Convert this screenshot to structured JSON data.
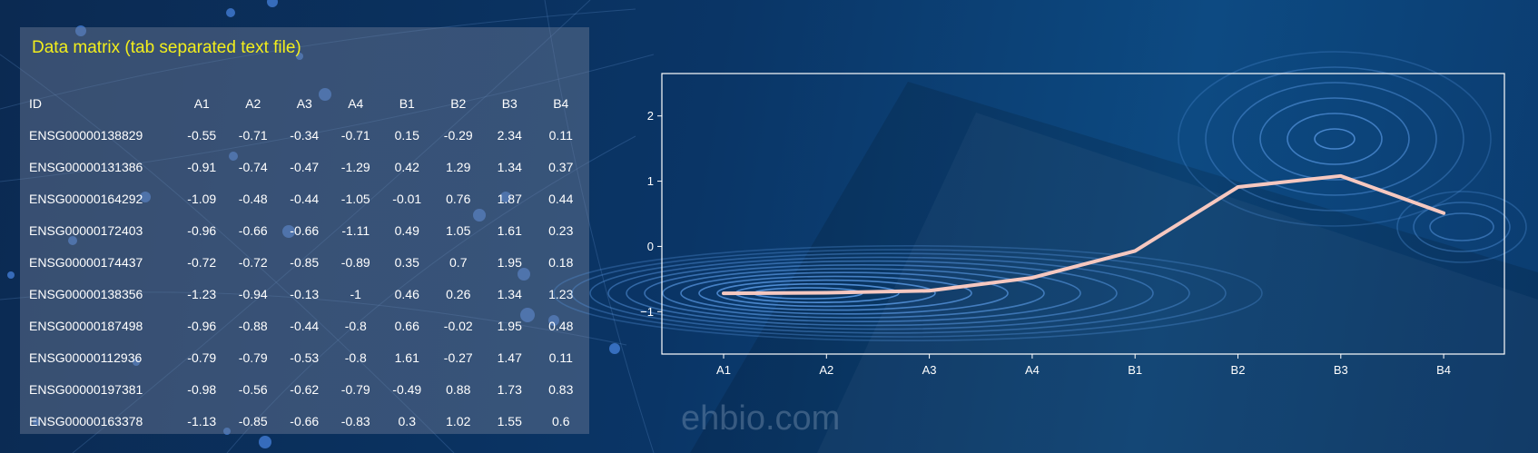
{
  "panel": {
    "title": "Data matrix (tab separated text file)"
  },
  "table": {
    "columns": [
      "ID",
      "A1",
      "A2",
      "A3",
      "A4",
      "B1",
      "B2",
      "B3",
      "B4"
    ],
    "rows": [
      [
        "ENSG00000138829",
        "-0.55",
        "-0.71",
        "-0.34",
        "-0.71",
        "0.15",
        "-0.29",
        "2.34",
        "0.11"
      ],
      [
        "ENSG00000131386",
        "-0.91",
        "-0.74",
        "-0.47",
        "-1.29",
        "0.42",
        "1.29",
        "1.34",
        "0.37"
      ],
      [
        "ENSG00000164292",
        "-1.09",
        "-0.48",
        "-0.44",
        "-1.05",
        "-0.01",
        "0.76",
        "1.87",
        "0.44"
      ],
      [
        "ENSG00000172403",
        "-0.96",
        "-0.66",
        "-0.66",
        "-1.11",
        "0.49",
        "1.05",
        "1.61",
        "0.23"
      ],
      [
        "ENSG00000174437",
        "-0.72",
        "-0.72",
        "-0.85",
        "-0.89",
        "0.35",
        "0.7",
        "1.95",
        "0.18"
      ],
      [
        "ENSG00000138356",
        "-1.23",
        "-0.94",
        "-0.13",
        "-1",
        "0.46",
        "0.26",
        "1.34",
        "1.23"
      ],
      [
        "ENSG00000187498",
        "-0.96",
        "-0.88",
        "-0.44",
        "-0.8",
        "0.66",
        "-0.02",
        "1.95",
        "0.48"
      ],
      [
        "ENSG00000112936",
        "-0.79",
        "-0.79",
        "-0.53",
        "-0.8",
        "1.61",
        "-0.27",
        "1.47",
        "0.11"
      ],
      [
        "ENSG00000197381",
        "-0.98",
        "-0.56",
        "-0.62",
        "-0.79",
        "-0.49",
        "0.88",
        "1.73",
        "0.83"
      ],
      [
        "ENSG00000163378",
        "-1.13",
        "-0.85",
        "-0.66",
        "-0.83",
        "0.3",
        "1.02",
        "1.55",
        "0.6"
      ]
    ]
  },
  "chart_data": {
    "type": "line",
    "categories": [
      "A1",
      "A2",
      "A3",
      "A4",
      "B1",
      "B2",
      "B3",
      "B4"
    ],
    "series": [
      {
        "values": [
          -0.72,
          -0.71,
          -0.68,
          -0.48,
          -0.07,
          0.91,
          1.08,
          0.51
        ],
        "color": "#f6c8c0"
      }
    ],
    "yticks": [
      -1,
      0,
      1,
      2
    ],
    "ylim": [
      -1.65,
      2.65
    ],
    "xlabel": "",
    "ylabel": "",
    "title": "",
    "grid": false,
    "background_contours": true,
    "contour_color": "#5b9be6"
  },
  "watermark": "ehbio.com"
}
